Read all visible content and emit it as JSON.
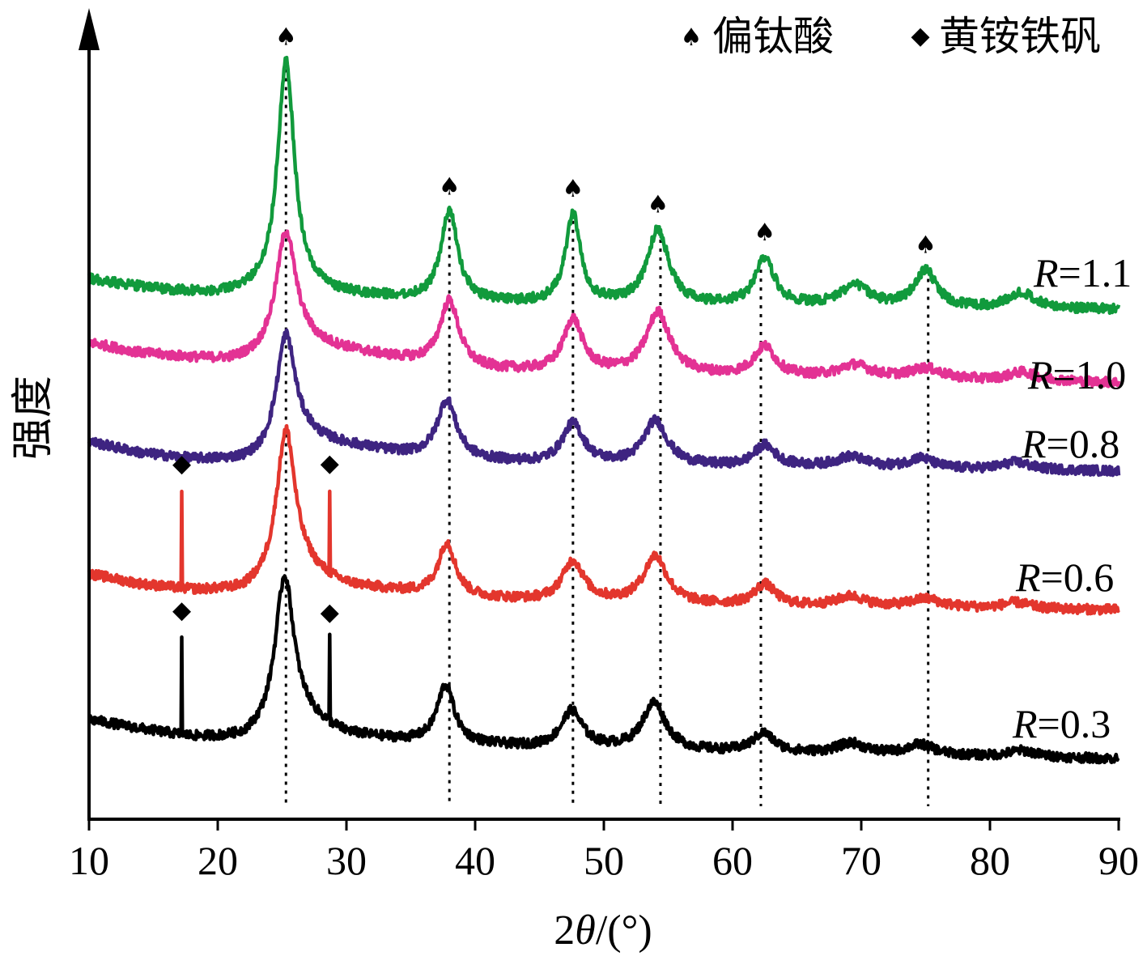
{
  "chart_data": {
    "type": "line",
    "xlabel_parts": {
      "prefix": "2",
      "theta": "θ",
      "suffix": "/(°)"
    },
    "ylabel": "强度",
    "xlim": [
      10,
      90
    ],
    "x_ticks": [
      "10",
      "20",
      "30",
      "40",
      "50",
      "60",
      "70",
      "80",
      "90"
    ],
    "y_ticks_shown": false,
    "grid": false,
    "legend_position": "top-right",
    "legend": [
      {
        "symbol": "spade",
        "glyph": "♠",
        "label": "偏钛酸"
      },
      {
        "symbol": "diamond",
        "glyph": "◆",
        "label": "黄铵铁矾"
      }
    ],
    "reference_lines_x": [
      25.3,
      38.0,
      47.6,
      54.4,
      62.2,
      75.2
    ],
    "series": [
      {
        "name": "R=1.1",
        "label_prefix": "R",
        "label_value": "=1.1",
        "color": "#119a3c",
        "baseline": [
          [
            10,
            0.5
          ],
          [
            13,
            0.44
          ],
          [
            16,
            0.39
          ],
          [
            20,
            0.35
          ],
          [
            23,
            0.36
          ],
          [
            26,
            0.37
          ],
          [
            30,
            0.34
          ],
          [
            35,
            0.3
          ],
          [
            40,
            0.27
          ],
          [
            45,
            0.26
          ],
          [
            50,
            0.25
          ],
          [
            55,
            0.24
          ],
          [
            60,
            0.24
          ],
          [
            65,
            0.24
          ],
          [
            70,
            0.235
          ],
          [
            75,
            0.225
          ],
          [
            80,
            0.22
          ],
          [
            85,
            0.215
          ],
          [
            90,
            0.21
          ]
        ],
        "peaks": [
          [
            25.3,
            2.2,
            0.8
          ],
          [
            38.0,
            0.85,
            0.8
          ],
          [
            47.6,
            0.85,
            0.7
          ],
          [
            54.2,
            0.72,
            1.0
          ],
          [
            62.5,
            0.45,
            0.9
          ],
          [
            69.5,
            0.2,
            1.3
          ],
          [
            75.0,
            0.35,
            1.0
          ],
          [
            82.5,
            0.15,
            1.2
          ]
        ],
        "sharp_peaks": []
      },
      {
        "name": "R=1.0",
        "label_prefix": "R",
        "label_value": "=1.0",
        "color": "#e33294",
        "baseline": [
          [
            10,
            0.78
          ],
          [
            14,
            0.68
          ],
          [
            18,
            0.63
          ],
          [
            21,
            0.6
          ],
          [
            23,
            0.62
          ],
          [
            27,
            0.74
          ],
          [
            30,
            0.7
          ],
          [
            35,
            0.6
          ],
          [
            40,
            0.52
          ],
          [
            45,
            0.5
          ],
          [
            50,
            0.49
          ],
          [
            55,
            0.48
          ],
          [
            60,
            0.46
          ],
          [
            65,
            0.45
          ],
          [
            70,
            0.44
          ],
          [
            75,
            0.43
          ],
          [
            80,
            0.42
          ],
          [
            85,
            0.415
          ],
          [
            90,
            0.4
          ]
        ],
        "peaks": [
          [
            25.3,
            1.15,
            0.95
          ],
          [
            38.0,
            0.62,
            0.9
          ],
          [
            47.6,
            0.5,
            0.9
          ],
          [
            54.2,
            0.58,
            1.1
          ],
          [
            62.5,
            0.28,
            1.0
          ],
          [
            69.5,
            0.12,
            1.5
          ],
          [
            75.0,
            0.1,
            1.5
          ],
          [
            82.5,
            0.08,
            1.3
          ]
        ],
        "sharp_peaks": []
      },
      {
        "name": "R=0.8",
        "label_prefix": "R",
        "label_value": "=0.8",
        "color": "#3e2481",
        "baseline": [
          [
            10,
            0.57
          ],
          [
            14,
            0.46
          ],
          [
            18,
            0.4
          ],
          [
            22,
            0.38
          ],
          [
            23.5,
            0.4
          ],
          [
            27,
            0.58
          ],
          [
            30,
            0.53
          ],
          [
            35,
            0.44
          ],
          [
            40,
            0.39
          ],
          [
            45,
            0.36
          ],
          [
            50,
            0.35
          ],
          [
            55,
            0.34
          ],
          [
            60,
            0.33
          ],
          [
            65,
            0.33
          ],
          [
            70,
            0.32
          ],
          [
            75,
            0.31
          ],
          [
            80,
            0.305
          ],
          [
            85,
            0.3
          ],
          [
            90,
            0.29
          ]
        ],
        "peaks": [
          [
            25.3,
            1.1,
            0.9
          ],
          [
            37.8,
            0.55,
            0.9
          ],
          [
            47.6,
            0.38,
            1.0
          ],
          [
            54.0,
            0.42,
            1.1
          ],
          [
            62.5,
            0.2,
            1.0
          ],
          [
            69.2,
            0.1,
            1.4
          ],
          [
            74.6,
            0.1,
            1.2
          ],
          [
            82.0,
            0.07,
            1.3
          ]
        ],
        "sharp_peaks": []
      },
      {
        "name": "R=0.6",
        "label_prefix": "R",
        "label_value": "=0.6",
        "color": "#e3362d",
        "baseline": [
          [
            10,
            0.62
          ],
          [
            14,
            0.52
          ],
          [
            18,
            0.46
          ],
          [
            22,
            0.44
          ],
          [
            23.5,
            0.48
          ],
          [
            27,
            0.6
          ],
          [
            30,
            0.5
          ],
          [
            35,
            0.44
          ],
          [
            40,
            0.39
          ],
          [
            45,
            0.36
          ],
          [
            50,
            0.35
          ],
          [
            55,
            0.33
          ],
          [
            60,
            0.32
          ],
          [
            65,
            0.31
          ],
          [
            70,
            0.3
          ],
          [
            75,
            0.3
          ],
          [
            80,
            0.29
          ],
          [
            85,
            0.285
          ],
          [
            90,
            0.28
          ]
        ],
        "peaks": [
          [
            25.3,
            1.45,
            0.9
          ],
          [
            37.8,
            0.5,
            0.8
          ],
          [
            47.6,
            0.38,
            1.0
          ],
          [
            54.0,
            0.45,
            1.1
          ],
          [
            62.5,
            0.2,
            1.0
          ],
          [
            69.2,
            0.1,
            1.4
          ],
          [
            75.0,
            0.08,
            1.5
          ],
          [
            82.0,
            0.06,
            1.3
          ]
        ],
        "sharp_peaks": [
          [
            17.2,
            0.95
          ],
          [
            28.7,
            0.8
          ]
        ]
      },
      {
        "name": "R=0.3",
        "label_prefix": "R",
        "label_value": "=0.3",
        "color": "#000000",
        "baseline": [
          [
            10,
            0.62
          ],
          [
            14,
            0.53
          ],
          [
            18,
            0.45
          ],
          [
            22,
            0.42
          ],
          [
            23.5,
            0.46
          ],
          [
            27,
            0.58
          ],
          [
            30,
            0.47
          ],
          [
            35,
            0.41
          ],
          [
            40,
            0.38
          ],
          [
            45,
            0.35
          ],
          [
            50,
            0.34
          ],
          [
            55,
            0.32
          ],
          [
            60,
            0.31
          ],
          [
            65,
            0.3
          ],
          [
            70,
            0.29
          ],
          [
            75,
            0.28
          ],
          [
            80,
            0.27
          ],
          [
            85,
            0.26
          ],
          [
            90,
            0.25
          ]
        ],
        "peaks": [
          [
            25.2,
            1.47,
            0.9
          ],
          [
            37.7,
            0.55,
            0.8
          ],
          [
            47.5,
            0.35,
            1.0
          ],
          [
            53.9,
            0.45,
            1.1
          ],
          [
            62.4,
            0.18,
            1.0
          ],
          [
            69.2,
            0.1,
            1.3
          ],
          [
            74.6,
            0.1,
            1.3
          ],
          [
            82.5,
            0.06,
            1.3
          ]
        ],
        "sharp_peaks": [
          [
            17.2,
            0.95
          ],
          [
            28.7,
            0.8
          ]
        ]
      }
    ],
    "markers": [
      {
        "symbol": "spade",
        "glyph": "♠",
        "x": 25.3,
        "series": "R=1.1"
      },
      {
        "symbol": "spade",
        "glyph": "♠",
        "x": 38.0,
        "series": "R=1.1"
      },
      {
        "symbol": "spade",
        "glyph": "♠",
        "x": 47.6,
        "series": "R=1.1"
      },
      {
        "symbol": "spade",
        "glyph": "♠",
        "x": 54.2,
        "series": "R=1.1"
      },
      {
        "symbol": "spade",
        "glyph": "♠",
        "x": 62.5,
        "series": "R=1.1"
      },
      {
        "symbol": "spade",
        "glyph": "♠",
        "x": 75.0,
        "series": "R=1.1"
      },
      {
        "symbol": "diamond",
        "glyph": "◆",
        "x": 17.2,
        "series": "R=0.6"
      },
      {
        "symbol": "diamond",
        "glyph": "◆",
        "x": 28.7,
        "series": "R=0.6"
      },
      {
        "symbol": "diamond",
        "glyph": "◆",
        "x": 17.2,
        "series": "R=0.3"
      },
      {
        "symbol": "diamond",
        "glyph": "◆",
        "x": 28.7,
        "series": "R=0.3"
      }
    ]
  }
}
